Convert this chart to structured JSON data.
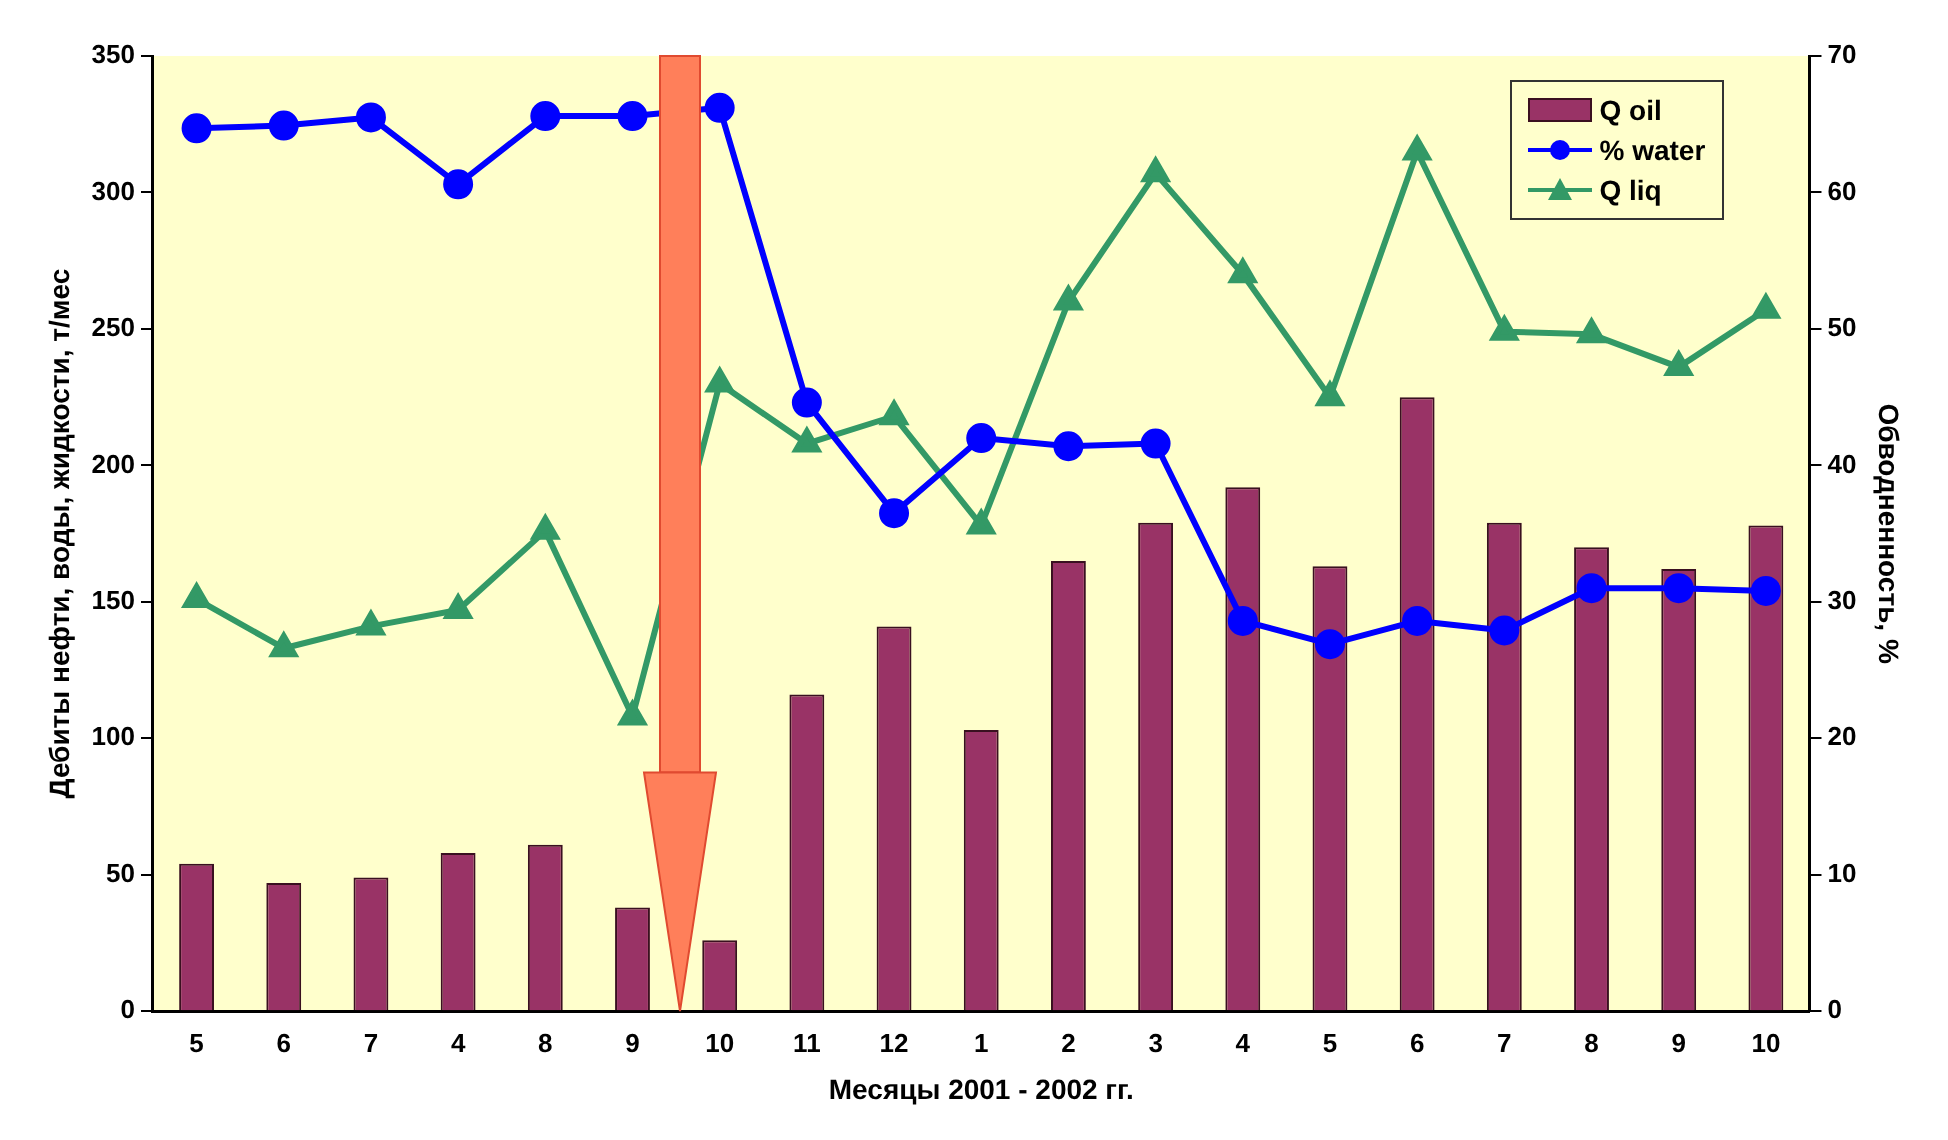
{
  "chart_data": {
    "type": "bar",
    "xlabel": "Месяцы 2001 - 2002 гг.",
    "ylabel": "Дебиты нефти, воды, жидкости, т/мес",
    "y2label": "Обводненность, %",
    "categories": [
      "5",
      "6",
      "7",
      "4",
      "8",
      "9",
      "10",
      "11",
      "12",
      "1",
      "2",
      "3",
      "4",
      "5",
      "6",
      "7",
      "8",
      "9",
      "10"
    ],
    "series": [
      {
        "name": "Q oil",
        "color": "#993366",
        "values": [
          54,
          47,
          49,
          58,
          61,
          38,
          26,
          116,
          141,
          103,
          165,
          179,
          192,
          163,
          225,
          179,
          170,
          162,
          178
        ]
      },
      {
        "name": "% water",
        "type": "line",
        "axis": "y2",
        "color": "#0000ff",
        "marker": "circle",
        "values": [
          64.7,
          64.9,
          65.5,
          60.6,
          65.6,
          65.6,
          66.2,
          44.6,
          36.5,
          42.0,
          41.4,
          41.6,
          28.6,
          26.9,
          28.6,
          27.9,
          31.0,
          31.0,
          30.8
        ]
      },
      {
        "name": "Q liq",
        "type": "line",
        "color": "#339966",
        "marker": "triangle",
        "values": [
          151,
          133,
          141,
          147,
          176,
          108,
          230,
          208,
          218,
          178,
          260,
          307,
          270,
          225,
          315,
          249,
          248,
          236,
          257
        ]
      }
    ],
    "ylim": [
      0,
      350
    ],
    "yticks": [
      0,
      50,
      100,
      150,
      200,
      250,
      300,
      350
    ],
    "y2lim": [
      0,
      70
    ],
    "y2ticks": [
      0,
      10,
      20,
      30,
      40,
      50,
      60,
      70
    ],
    "grid": false,
    "legend": "top right"
  }
}
